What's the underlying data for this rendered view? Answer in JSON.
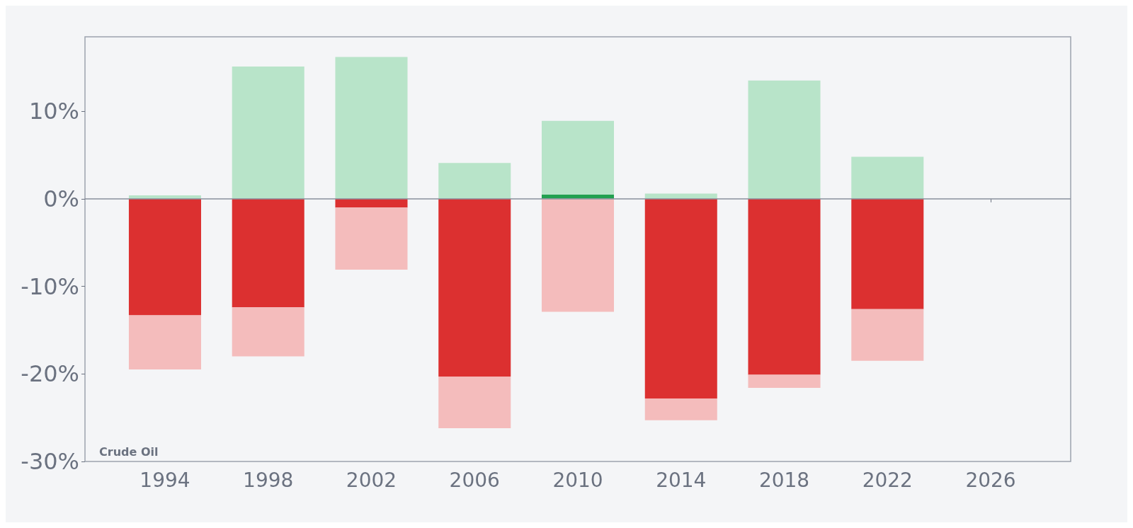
{
  "chart_data": {
    "type": "bar",
    "x": [
      1994,
      1998,
      2002,
      2006,
      2010,
      2014,
      2018,
      2022
    ],
    "series": [
      {
        "colors": [
          "#dc3030",
          "#dc3030",
          "#dc3030",
          "#dc3030",
          "#22a050",
          "#dc3030",
          "#dc3030",
          "#dc3030"
        ],
        "values": [
          -13.3,
          -12.4,
          -1.0,
          -20.3,
          0.5,
          -22.8,
          -20.1,
          -12.6
        ]
      },
      {
        "color": "#b8e4c9",
        "values": [
          0.4,
          15.1,
          16.2,
          4.1,
          8.4,
          0.6,
          13.5,
          4.8
        ]
      },
      {
        "color": "#f4bcbc",
        "values": [
          -6.2,
          -5.6,
          -7.1,
          -5.9,
          -12.9,
          -2.5,
          -1.5,
          -5.9
        ]
      }
    ],
    "stacked": true,
    "xlim": [
      1990.9,
      2029.1
    ],
    "xticks": [
      1994,
      1998,
      2002,
      2006,
      2010,
      2014,
      2018,
      2022,
      2026
    ],
    "ylim": [
      -30,
      18.5
    ],
    "yticks": [
      {
        "value": -30,
        "label": "-30%"
      },
      {
        "value": -20,
        "label": "-20%"
      },
      {
        "value": -10,
        "label": "-10%"
      },
      {
        "value": 0,
        "label": "0%"
      },
      {
        "value": 10,
        "label": "10%"
      }
    ],
    "ref_lines": [
      {
        "axis": "y",
        "value": 0,
        "color": "#8a8f9c"
      }
    ],
    "annotations": [
      "Crude Oil"
    ],
    "grid": false
  }
}
